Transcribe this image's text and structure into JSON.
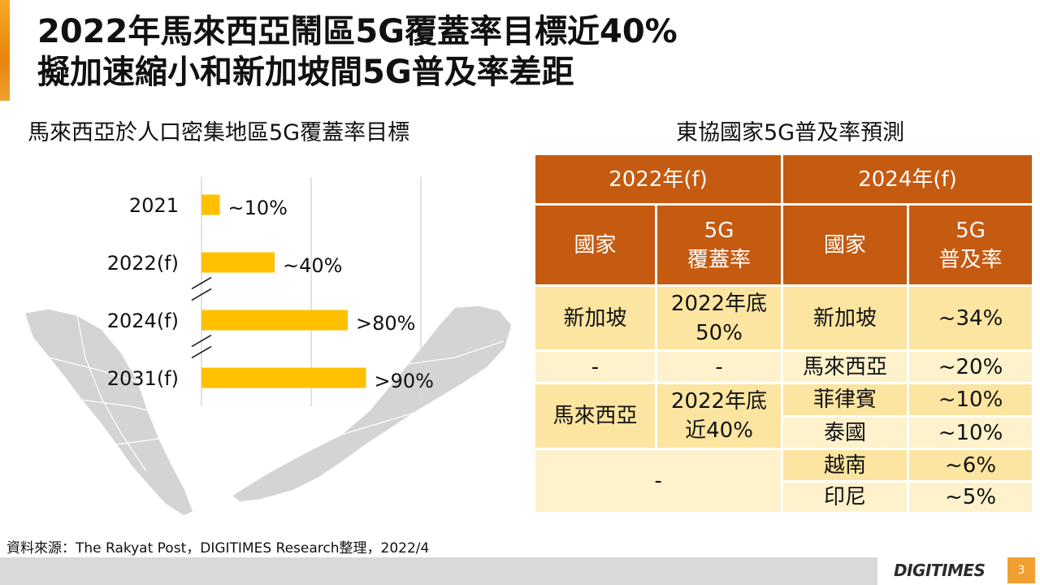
{
  "title": {
    "line1": "2022年馬來西亞鬧區5G覆蓋率目標近40%",
    "line2": "擬加速縮小和新加坡間5G普及率差距"
  },
  "left_panel": {
    "heading": "馬來西亞於人口密集地區5G覆蓋率目標"
  },
  "chart_data": {
    "type": "bar",
    "orientation": "horizontal",
    "title": "馬來西亞於人口密集地區5G覆蓋率目標",
    "categories": [
      "2021",
      "2022(f)",
      "2024(f)",
      "2031(f)"
    ],
    "values": [
      10,
      40,
      80,
      90
    ],
    "data_labels": [
      "~10%",
      "~40%",
      ">80%",
      ">90%"
    ],
    "xlim": [
      0,
      120
    ],
    "grid": true,
    "axis_breaks_after": [
      "2022(f)",
      "2024(f)"
    ],
    "bar_color": "#ffc000"
  },
  "right_panel": {
    "heading": "東協國家5G普及率預測",
    "table": {
      "header_2022": "2022年(f)",
      "header_2024": "2024年(f)",
      "col_country": "國家",
      "col_coverage_line1": "5G",
      "col_coverage_line2": "覆蓋率",
      "col_penetration_line1": "5G",
      "col_penetration_line2": "普及率",
      "sg_country": "新加坡",
      "sg_coverage_line1": "2022年底",
      "sg_coverage_line2": "50%",
      "dash": "-",
      "my_country": "馬來西亞",
      "my_coverage_line1": "2022年底",
      "my_coverage_line2": "近40%",
      "countries_2024": [
        "新加坡",
        "馬來西亞",
        "菲律賓",
        "泰國",
        "越南",
        "印尼"
      ],
      "penetration_2024": [
        "~34%",
        "~20%",
        "~10%",
        "~10%",
        "~6%",
        "~5%"
      ]
    }
  },
  "footer": {
    "source": "資料來源：The Rakyat Post，DIGITIMES Research整理，2022/4",
    "logo": "DIGITIMES",
    "page": "3"
  }
}
